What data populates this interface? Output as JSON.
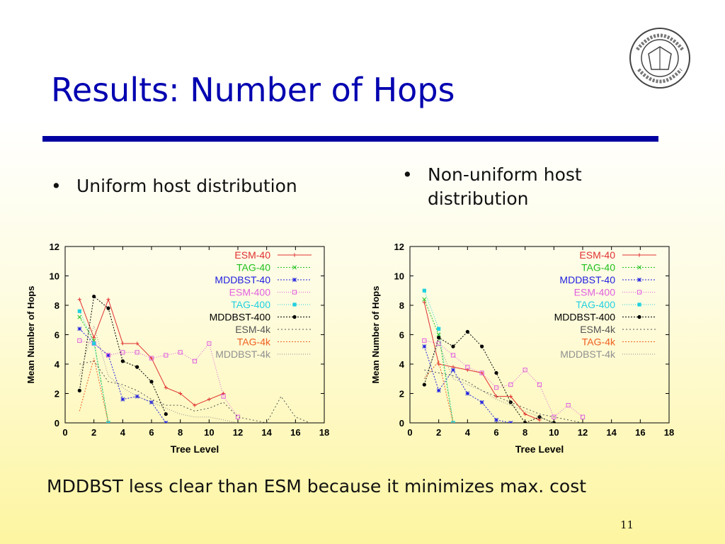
{
  "slide": {
    "title": "Results: Number of Hops",
    "bullets": [
      "Uniform host distribution",
      "Non-uniform host distribution"
    ],
    "bullet_symbol": "•",
    "conclusion": "MDDBST less clear than ESM because it minimizes max. cost",
    "page_number": "11",
    "logo": "purdue-university-seal",
    "accent_color": "#0000b0"
  },
  "chart_data": [
    {
      "type": "line",
      "title": "",
      "xlabel": "Tree Level",
      "ylabel": "Mean Number of Hops",
      "xlim": [
        0,
        18
      ],
      "ylim": [
        0,
        12
      ],
      "xticks": [
        0,
        2,
        4,
        6,
        8,
        10,
        12,
        14,
        16,
        18
      ],
      "yticks": [
        0,
        2,
        4,
        6,
        8,
        10,
        12
      ],
      "grid": false,
      "legend_position": "top-right",
      "series": [
        {
          "name": "ESM-40",
          "color": "#e03030",
          "dash": "",
          "marker": "plus",
          "x": [
            1,
            2,
            3,
            4,
            5,
            6,
            7,
            8,
            9,
            10,
            11
          ],
          "y": [
            8.4,
            5.8,
            8.4,
            5.4,
            5.4,
            4.4,
            2.4,
            2.0,
            1.2,
            1.6,
            2.0
          ]
        },
        {
          "name": "TAG-40",
          "color": "#20c020",
          "dash": "2,2",
          "marker": "x",
          "x": [
            1,
            2,
            3
          ],
          "y": [
            7.2,
            5.6,
            0.0
          ]
        },
        {
          "name": "MDDBST-40",
          "color": "#2020e0",
          "dash": "2,2",
          "marker": "star",
          "x": [
            1,
            2,
            3,
            4,
            5,
            6,
            7
          ],
          "y": [
            6.4,
            5.4,
            4.6,
            1.6,
            1.8,
            1.4,
            0.0
          ]
        },
        {
          "name": "ESM-400",
          "color": "#e060e0",
          "dash": "1,2",
          "marker": "square",
          "x": [
            1,
            2,
            3,
            4,
            5,
            6,
            7,
            8,
            9,
            10,
            11,
            12
          ],
          "y": [
            5.6,
            5.4,
            4.6,
            4.8,
            4.8,
            4.4,
            4.6,
            4.8,
            4.2,
            5.4,
            1.8,
            0.4
          ]
        },
        {
          "name": "TAG-400",
          "color": "#20d0e0",
          "dash": "1,2",
          "marker": "filled-square",
          "x": [
            1,
            2,
            3
          ],
          "y": [
            7.6,
            5.4,
            0.0
          ]
        },
        {
          "name": "MDDBST-400",
          "color": "#000000",
          "dash": "2,2",
          "marker": "dot",
          "x": [
            1,
            2,
            3,
            4,
            5,
            6,
            7
          ],
          "y": [
            2.2,
            8.6,
            7.8,
            4.2,
            3.8,
            2.8,
            0.6
          ]
        },
        {
          "name": "ESM-4k",
          "color": "#555555",
          "dash": "2,3",
          "marker": "none",
          "x": [
            1,
            2,
            3,
            4,
            5,
            6,
            7,
            8,
            9,
            10,
            11,
            12,
            13,
            14,
            15,
            16,
            17
          ],
          "y": [
            4.0,
            4.2,
            2.8,
            2.6,
            2.2,
            1.6,
            1.2,
            1.2,
            0.8,
            1.0,
            1.4,
            0.4,
            0.2,
            0.0,
            1.8,
            0.4,
            0.0
          ]
        },
        {
          "name": "TAG-4k",
          "color": "#f06020",
          "dash": "2,2",
          "marker": "none",
          "x": [
            1,
            2,
            3
          ],
          "y": [
            0.8,
            4.4,
            0.0
          ]
        },
        {
          "name": "MDDBST-4k",
          "color": "#909090",
          "dash": "1,2",
          "marker": "none",
          "x": [
            1,
            2,
            3,
            4,
            5,
            6,
            7,
            8,
            9,
            10,
            11,
            12
          ],
          "y": [
            3.2,
            6.6,
            3.2,
            2.4,
            1.8,
            1.4,
            1.0,
            0.6,
            0.4,
            0.4,
            0.2,
            0.0
          ]
        }
      ]
    },
    {
      "type": "line",
      "title": "",
      "xlabel": "Tree Level",
      "ylabel": "Mean Number of Hops",
      "xlim": [
        0,
        18
      ],
      "ylim": [
        0,
        12
      ],
      "xticks": [
        0,
        2,
        4,
        6,
        8,
        10,
        12,
        14,
        16,
        18
      ],
      "yticks": [
        0,
        2,
        4,
        6,
        8,
        10,
        12
      ],
      "grid": false,
      "legend_position": "top-right",
      "series": [
        {
          "name": "ESM-40",
          "color": "#e03030",
          "dash": "",
          "marker": "plus",
          "x": [
            1,
            2,
            3,
            4,
            5,
            6,
            7,
            8,
            9
          ],
          "y": [
            8.2,
            4.0,
            3.8,
            3.6,
            3.4,
            1.8,
            1.8,
            0.6,
            0.2
          ]
        },
        {
          "name": "TAG-40",
          "color": "#20c020",
          "dash": "2,2",
          "marker": "x",
          "x": [
            1,
            2,
            3
          ],
          "y": [
            8.4,
            6.0,
            0.0
          ]
        },
        {
          "name": "MDDBST-40",
          "color": "#2020e0",
          "dash": "2,2",
          "marker": "star",
          "x": [
            1,
            2,
            3,
            4,
            5,
            6,
            7
          ],
          "y": [
            5.2,
            2.2,
            3.6,
            2.0,
            1.4,
            0.2,
            0.0
          ]
        },
        {
          "name": "ESM-400",
          "color": "#e060e0",
          "dash": "1,2",
          "marker": "square",
          "x": [
            1,
            2,
            3,
            4,
            5,
            6,
            7,
            8,
            9,
            10,
            11,
            12
          ],
          "y": [
            5.6,
            5.4,
            4.6,
            3.8,
            3.4,
            2.4,
            2.6,
            3.6,
            2.6,
            0.4,
            1.2,
            0.4
          ]
        },
        {
          "name": "TAG-400",
          "color": "#20d0e0",
          "dash": "1,2",
          "marker": "filled-square",
          "x": [
            1,
            2,
            3
          ],
          "y": [
            9.0,
            6.4,
            0.0
          ]
        },
        {
          "name": "MDDBST-400",
          "color": "#000000",
          "dash": "2,2",
          "marker": "dot",
          "x": [
            1,
            2,
            3,
            4,
            5,
            6,
            7,
            8,
            9,
            10
          ],
          "y": [
            2.6,
            5.8,
            5.2,
            6.2,
            5.2,
            3.4,
            1.4,
            0.0,
            0.4,
            0.0
          ]
        },
        {
          "name": "ESM-4k",
          "color": "#555555",
          "dash": "2,3",
          "marker": "none",
          "x": [
            1,
            2,
            3,
            4,
            5,
            6,
            7,
            8,
            9,
            10,
            11,
            12
          ],
          "y": [
            3.6,
            3.4,
            3.2,
            2.8,
            2.2,
            1.8,
            1.4,
            1.0,
            0.6,
            0.4,
            0.2,
            0.0
          ]
        },
        {
          "name": "TAG-4k",
          "color": "#f06020",
          "dash": "2,2",
          "marker": "none",
          "x": [
            1,
            2,
            3
          ],
          "y": [
            3.0,
            4.2,
            0.0
          ]
        },
        {
          "name": "MDDBST-4k",
          "color": "#909090",
          "dash": "1,2",
          "marker": "none",
          "x": [
            1,
            2,
            3,
            4,
            5,
            6,
            7,
            8,
            9,
            10
          ],
          "y": [
            3.0,
            5.4,
            3.0,
            2.6,
            2.2,
            1.6,
            1.2,
            0.8,
            0.4,
            0.0
          ]
        }
      ]
    }
  ]
}
